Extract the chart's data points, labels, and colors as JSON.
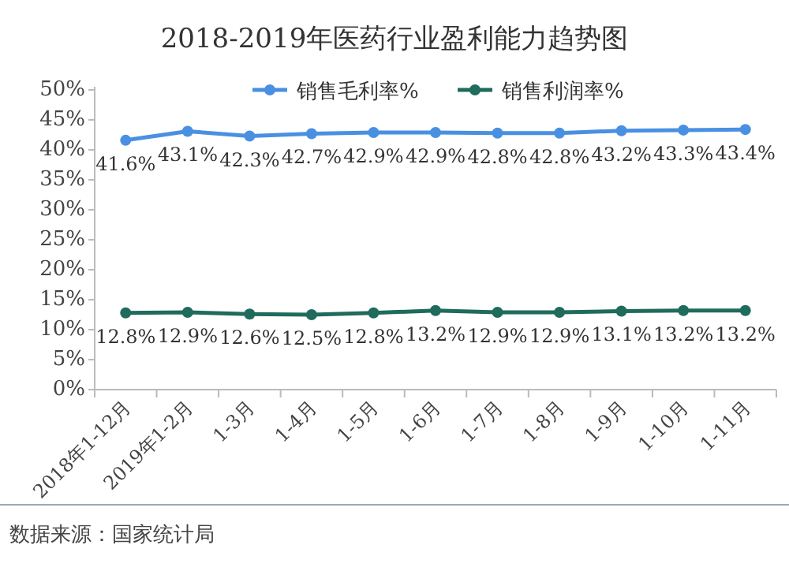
{
  "chart_data": {
    "type": "line",
    "title": "2018-2019年医药行业盈利能力趋势图",
    "categories": [
      "2018年1-12月",
      "2019年1-2月",
      "1-3月",
      "1-4月",
      "1-5月",
      "1-6月",
      "1-7月",
      "1-8月",
      "1-9月",
      "1-10月",
      "1-11月"
    ],
    "series": [
      {
        "name": "销售毛利率%",
        "color": "#4a90e2",
        "values": [
          41.6,
          43.1,
          42.3,
          42.7,
          42.9,
          42.9,
          42.8,
          42.8,
          43.2,
          43.3,
          43.4
        ],
        "value_labels": [
          "41.6%",
          "43.1%",
          "42.3%",
          "42.7%",
          "42.9%",
          "42.9%",
          "42.8%",
          "42.8%",
          "43.2%",
          "43.3%",
          "43.4%"
        ]
      },
      {
        "name": "销售利润率%",
        "color": "#1f6b5c",
        "values": [
          12.8,
          12.9,
          12.6,
          12.5,
          12.8,
          13.2,
          12.9,
          12.9,
          13.1,
          13.2,
          13.2
        ],
        "value_labels": [
          "12.8%",
          "12.9%",
          "12.6%",
          "12.5%",
          "12.8%",
          "13.2%",
          "12.9%",
          "12.9%",
          "13.1%",
          "13.2%",
          "13.2%"
        ]
      }
    ],
    "ylim": [
      0,
      50
    ],
    "yticks": [
      {
        "value": 0,
        "label": "0%"
      },
      {
        "value": 5,
        "label": "5%"
      },
      {
        "value": 10,
        "label": "10%"
      },
      {
        "value": 15,
        "label": "15%"
      },
      {
        "value": 20,
        "label": "20%"
      },
      {
        "value": 25,
        "label": "25%"
      },
      {
        "value": 30,
        "label": "30%"
      },
      {
        "value": 35,
        "label": "35%"
      },
      {
        "value": 40,
        "label": "40%"
      },
      {
        "value": 45,
        "label": "45%"
      },
      {
        "value": 50,
        "label": "50%"
      }
    ],
    "legend": "top",
    "marker": "circle",
    "grid": false,
    "annotations": [
      "数据来源：国家统计局"
    ]
  }
}
